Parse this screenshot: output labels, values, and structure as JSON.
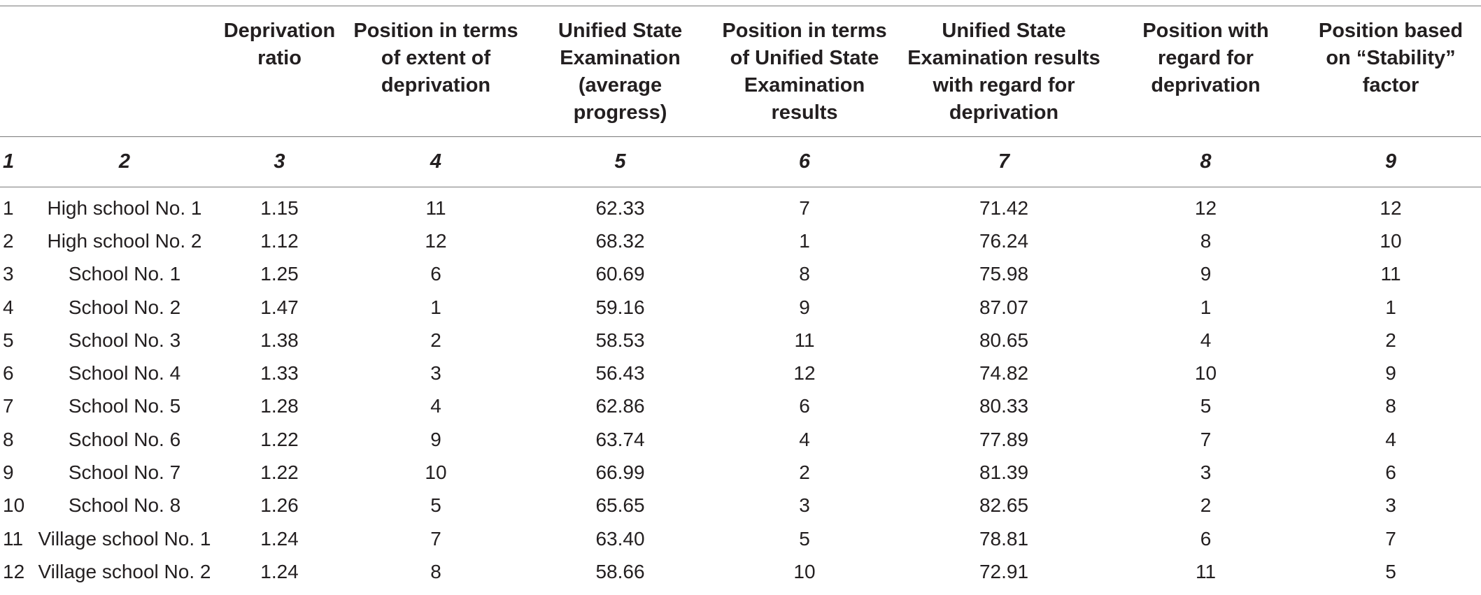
{
  "table": {
    "headers": [
      "",
      "",
      "Deprivation ratio",
      "Position in terms of extent of deprivation",
      "Unified State Examination (average progress)",
      "Position in terms of Unified State Examination results",
      "Unified State Examination results with regard for deprivation",
      "Position with regard for deprivation",
      "Position based on “Stability” factor"
    ],
    "column_numbers": [
      "1",
      "2",
      "3",
      "4",
      "5",
      "6",
      "7",
      "8",
      "9"
    ],
    "rows": [
      [
        "1",
        "High school No. 1",
        "1.15",
        "11",
        "62.33",
        "7",
        "71.42",
        "12",
        "12"
      ],
      [
        "2",
        "High school No. 2",
        "1.12",
        "12",
        "68.32",
        "1",
        "76.24",
        "8",
        "10"
      ],
      [
        "3",
        "School No. 1",
        "1.25",
        "6",
        "60.69",
        "8",
        "75.98",
        "9",
        "11"
      ],
      [
        "4",
        "School No. 2",
        "1.47",
        "1",
        "59.16",
        "9",
        "87.07",
        "1",
        "1"
      ],
      [
        "5",
        "School No. 3",
        "1.38",
        "2",
        "58.53",
        "11",
        "80.65",
        "4",
        "2"
      ],
      [
        "6",
        "School No. 4",
        "1.33",
        "3",
        "56.43",
        "12",
        "74.82",
        "10",
        "9"
      ],
      [
        "7",
        "School No. 5",
        "1.28",
        "4",
        "62.86",
        "6",
        "80.33",
        "5",
        "8"
      ],
      [
        "8",
        "School No. 6",
        "1.22",
        "9",
        "63.74",
        "4",
        "77.89",
        "7",
        "4"
      ],
      [
        "9",
        "School No. 7",
        "1.22",
        "10",
        "66.99",
        "2",
        "81.39",
        "3",
        "6"
      ],
      [
        "10",
        "School No. 8",
        "1.26",
        "5",
        "65.65",
        "3",
        "82.65",
        "2",
        "3"
      ],
      [
        "11",
        "Village school No. 1",
        "1.24",
        "7",
        "63.40",
        "5",
        "78.81",
        "6",
        "7"
      ],
      [
        "12",
        "Village school No. 2",
        "1.24",
        "8",
        "58.66",
        "10",
        "72.91",
        "11",
        "5"
      ]
    ]
  }
}
